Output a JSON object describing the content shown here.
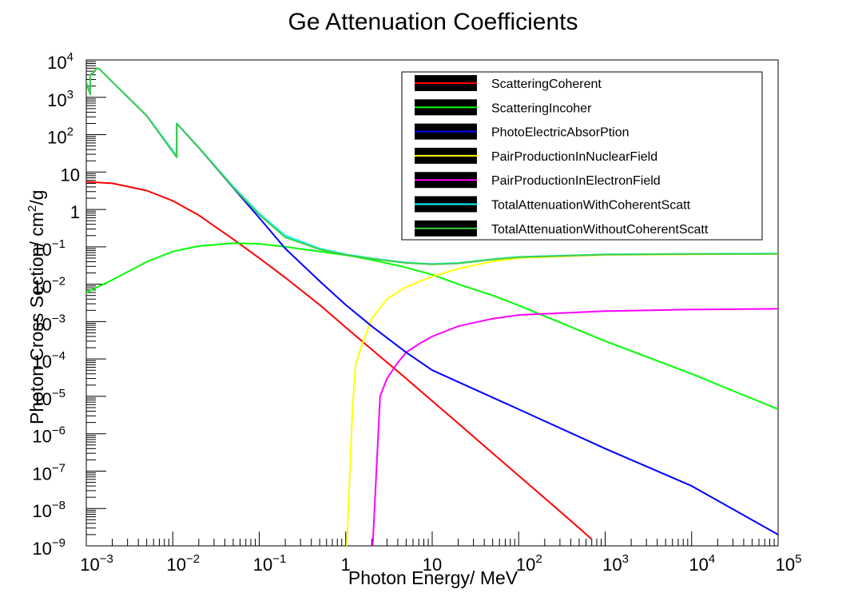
{
  "chart_data": {
    "type": "line",
    "title": "Ge Attenuation Coefficients",
    "xlabel": "Photon Energy/ MeV",
    "ylabel_parts": [
      "Photon Cross Section/ cm",
      "2",
      "/g"
    ],
    "xscale": "log",
    "yscale": "log",
    "xlim": [
      0.001,
      100000
    ],
    "ylim": [
      1e-09,
      10000
    ],
    "x_ticks": [
      {
        "value": 0.001,
        "base": "10",
        "exp": "−3"
      },
      {
        "value": 0.01,
        "base": "10",
        "exp": "−2"
      },
      {
        "value": 0.1,
        "base": "10",
        "exp": "−1"
      },
      {
        "value": 1,
        "base": "1",
        "exp": ""
      },
      {
        "value": 10,
        "base": "10",
        "exp": ""
      },
      {
        "value": 100,
        "base": "10",
        "exp": "2"
      },
      {
        "value": 1000,
        "base": "10",
        "exp": "3"
      },
      {
        "value": 10000,
        "base": "10",
        "exp": "4"
      },
      {
        "value": 100000,
        "base": "10",
        "exp": "5"
      }
    ],
    "y_ticks": [
      {
        "value": 10000,
        "base": "10",
        "exp": "4"
      },
      {
        "value": 1000,
        "base": "10",
        "exp": "3"
      },
      {
        "value": 100,
        "base": "10",
        "exp": "2"
      },
      {
        "value": 10,
        "base": "10",
        "exp": ""
      },
      {
        "value": 1,
        "base": "1",
        "exp": ""
      },
      {
        "value": 0.1,
        "base": "10",
        "exp": "−1"
      },
      {
        "value": 0.01,
        "base": "10",
        "exp": "−2"
      },
      {
        "value": 0.001,
        "base": "10",
        "exp": "−3"
      },
      {
        "value": 0.0001,
        "base": "10",
        "exp": "−4"
      },
      {
        "value": 1e-05,
        "base": "10",
        "exp": "−5"
      },
      {
        "value": 1e-06,
        "base": "10",
        "exp": "−6"
      },
      {
        "value": 1e-07,
        "base": "10",
        "exp": "−7"
      },
      {
        "value": 1e-08,
        "base": "10",
        "exp": "−8"
      },
      {
        "value": 1e-09,
        "base": "10",
        "exp": "−9"
      }
    ],
    "grid": false,
    "legend_position": "top-right",
    "series": [
      {
        "name": "ScatteringCoherent",
        "color": "#ff0000",
        "x": [
          0.001,
          0.002,
          0.005,
          0.01,
          0.02,
          0.05,
          0.1,
          0.2,
          0.5,
          1,
          2,
          5,
          10,
          20,
          50,
          100,
          200,
          500,
          700
        ],
        "y": [
          5.5,
          5.0,
          3.2,
          1.7,
          0.7,
          0.16,
          0.05,
          0.015,
          0.0028,
          0.0007,
          0.00018,
          3e-05,
          7.5e-06,
          1.9e-06,
          3e-07,
          7.5e-08,
          1.9e-08,
          3e-09,
          1.5e-09
        ]
      },
      {
        "name": "ScatteringIncoher",
        "color": "#00ff00",
        "x": [
          0.001,
          0.002,
          0.005,
          0.01,
          0.02,
          0.05,
          0.1,
          0.2,
          0.5,
          1,
          2,
          5,
          10,
          20,
          50,
          100,
          1000,
          10000,
          100000
        ],
        "y": [
          0.006,
          0.013,
          0.04,
          0.075,
          0.105,
          0.125,
          0.12,
          0.1,
          0.075,
          0.06,
          0.045,
          0.028,
          0.018,
          0.01,
          0.005,
          0.0027,
          0.0003,
          4e-05,
          4.5e-06
        ]
      },
      {
        "name": "PhotoElectricAbsorPtion",
        "color": "#0000ff",
        "x": [
          0.001,
          0.00111,
          0.00111,
          0.0012,
          0.00132,
          0.00141,
          0.002,
          0.005,
          0.0111,
          0.0111,
          0.02,
          0.05,
          0.1,
          0.2,
          0.5,
          1,
          2,
          5,
          10,
          100,
          1000,
          10000,
          100000
        ],
        "y": [
          2500,
          1200,
          4000,
          4500,
          6000,
          5800,
          2600,
          320,
          25,
          200,
          45,
          3.8,
          0.6,
          0.09,
          0.012,
          0.0028,
          0.00075,
          0.00015,
          5e-05,
          4.5e-06,
          4e-07,
          4e-08,
          2e-09
        ]
      },
      {
        "name": "PairProductionInNuclearField",
        "color": "#ffff00",
        "x": [
          1.03,
          1.2,
          1.3,
          1.5,
          2,
          3,
          5,
          10,
          20,
          50,
          100,
          1000,
          10000,
          100000
        ],
        "y": [
          1e-09,
          5e-06,
          7e-05,
          0.0002,
          0.0012,
          0.004,
          0.0085,
          0.016,
          0.026,
          0.041,
          0.05,
          0.061,
          0.063,
          0.064
        ]
      },
      {
        "name": "PairProductionInElectronField",
        "color": "#ff00ff",
        "x": [
          2.05,
          2.5,
          3,
          4,
          5,
          7,
          10,
          20,
          50,
          100,
          1000,
          10000,
          100000
        ],
        "y": [
          1e-09,
          1e-05,
          3e-05,
          8e-05,
          0.00015,
          0.00025,
          0.0004,
          0.00075,
          0.0012,
          0.0015,
          0.0019,
          0.0021,
          0.0022
        ]
      },
      {
        "name": "TotalAttenuationWithCoherentScatt",
        "color": "#00ffff",
        "x": [
          0.001,
          0.00111,
          0.00111,
          0.0012,
          0.00132,
          0.00141,
          0.002,
          0.005,
          0.0111,
          0.0111,
          0.02,
          0.05,
          0.1,
          0.2,
          0.5,
          1,
          2,
          5,
          10,
          20,
          50,
          100,
          1000,
          10000,
          100000
        ],
        "y": [
          2505,
          1205,
          4005,
          4505,
          6005,
          5805,
          2605,
          323,
          27,
          202,
          46,
          4.1,
          0.78,
          0.2,
          0.09,
          0.063,
          0.049,
          0.038,
          0.035,
          0.037,
          0.047,
          0.054,
          0.063,
          0.065,
          0.066
        ]
      },
      {
        "name": "TotalAttenuationWithoutCoherentScatt",
        "color": "#44cc44",
        "x": [
          0.001,
          0.00111,
          0.00111,
          0.0012,
          0.00132,
          0.00141,
          0.002,
          0.005,
          0.0111,
          0.0111,
          0.02,
          0.05,
          0.1,
          0.2,
          0.5,
          1,
          2,
          5,
          10,
          20,
          50,
          100,
          1000,
          10000,
          100000
        ],
        "y": [
          2500,
          1200,
          4000,
          4500,
          6000,
          5800,
          2600,
          320,
          25,
          200,
          45,
          3.9,
          0.72,
          0.18,
          0.085,
          0.061,
          0.048,
          0.037,
          0.034,
          0.036,
          0.046,
          0.053,
          0.062,
          0.064,
          0.065
        ]
      }
    ]
  }
}
